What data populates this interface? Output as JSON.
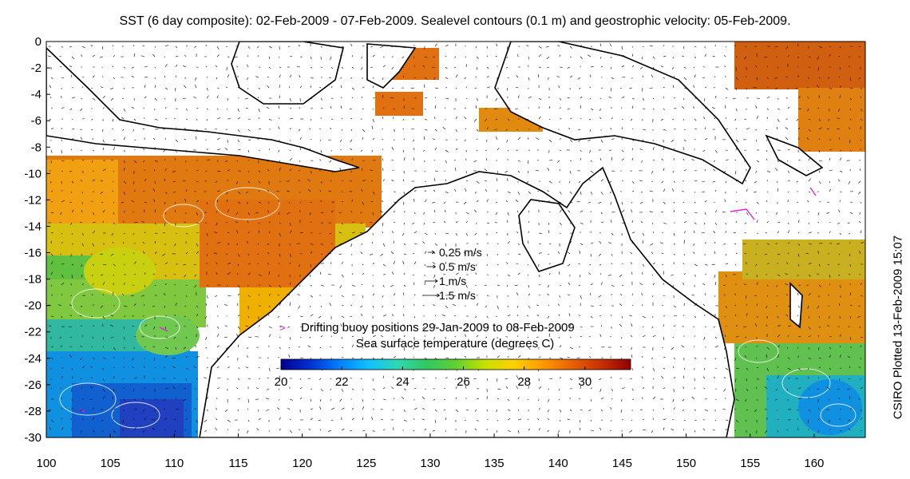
{
  "title": "SST (6 day composite): 02-Feb-2009 - 07-Feb-2009. Sealevel contours (0.1 m) and geostrophic velocity: 05-Feb-2009.",
  "side_label": "CSIRO Plotted 13-Feb-2009 15:07",
  "map": {
    "x_ticks": [
      "100",
      "105",
      "110",
      "115",
      "120",
      "125",
      "130",
      "135",
      "140",
      "145",
      "150",
      "155",
      "160"
    ],
    "y_ticks": [
      "0",
      "-2",
      "-4",
      "-6",
      "-8",
      "-10",
      "-12",
      "-14",
      "-16",
      "-18",
      "-20",
      "-22",
      "-24",
      "-26",
      "-28",
      "-30"
    ],
    "lon_range": [
      100,
      164
    ],
    "lat_range": [
      -30,
      0
    ],
    "land_color": "#ffffff",
    "coast_color": "#000000",
    "contour_color": "#ffffff",
    "buoy_color": "#e020e0"
  },
  "velocity_legend": [
    {
      "label": "0.25 m/s",
      "speed": 0.25
    },
    {
      "label": "0.5 m/s",
      "speed": 0.5
    },
    {
      "label": "1 m/s",
      "speed": 1
    },
    {
      "label": "1.5 m/s",
      "speed": 1.5
    }
  ],
  "buoy_legend": {
    "marker": ">",
    "label": "Drifting buoy positions 29-Jan-2009 to 08-Feb-2009"
  },
  "colorbar": {
    "title": "Sea surface temperature (degrees C)",
    "ticks": [
      "20",
      "22",
      "24",
      "26",
      "28",
      "30"
    ],
    "range": [
      20,
      31.5
    ],
    "colors": [
      "#00008f",
      "#0030d0",
      "#0080ff",
      "#10c0ff",
      "#30d8b0",
      "#30c860",
      "#60d030",
      "#c8e000",
      "#ffd000",
      "#ff9800",
      "#e86000",
      "#c83000",
      "#900000"
    ]
  }
}
